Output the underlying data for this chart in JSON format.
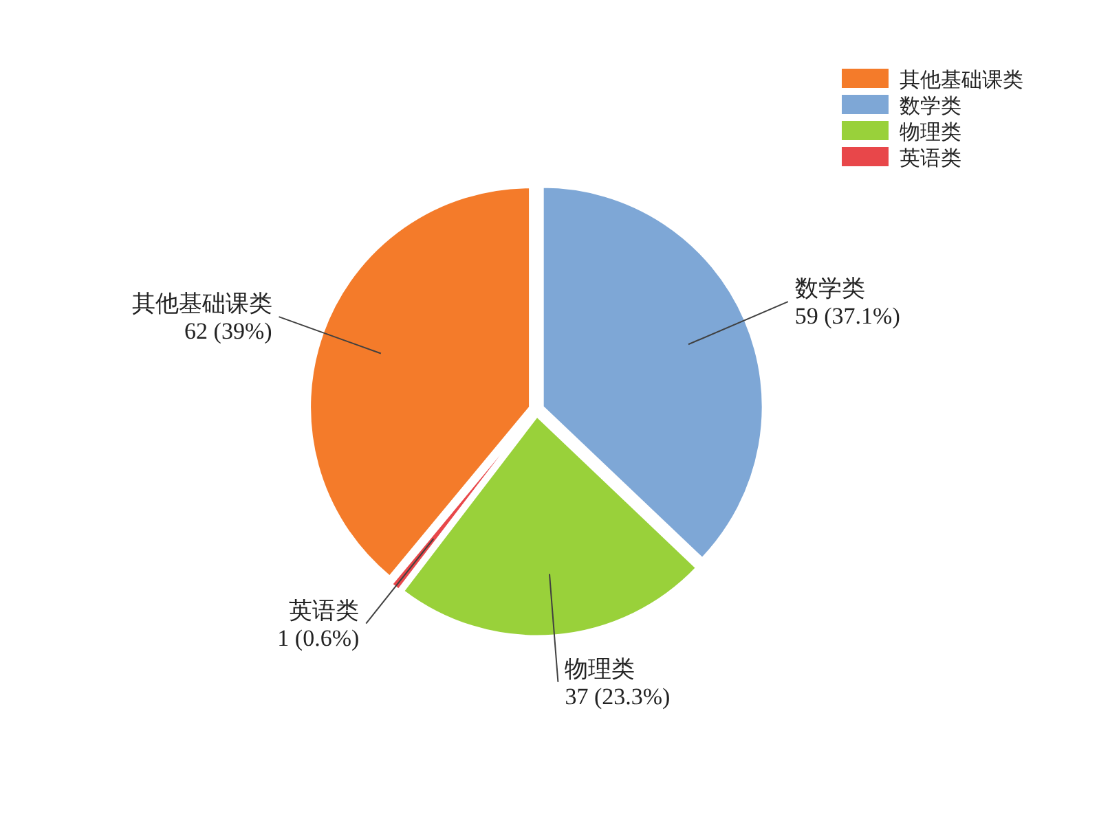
{
  "chart_data": {
    "type": "pie",
    "categories": [
      "其他基础课类",
      "数学类",
      "物理类",
      "英语类"
    ],
    "values": [
      62,
      59,
      37,
      1
    ],
    "value_labels": [
      "62 (39%)",
      "59 (37.1%)",
      "37 (23.3%)",
      "1 (0.6%)"
    ],
    "colors": [
      "#f47b2a",
      "#7ea7d6",
      "#99d13a",
      "#e8474a"
    ],
    "legend": "top right"
  }
}
